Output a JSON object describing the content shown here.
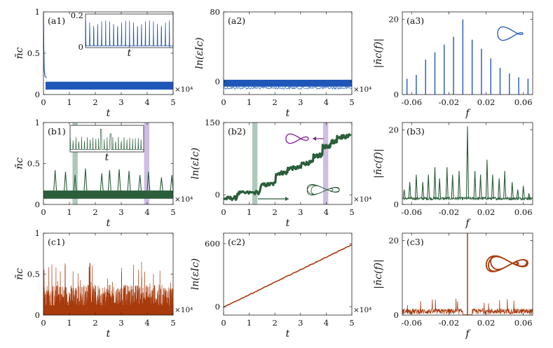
{
  "colors": {
    "blue": "#1f57b8",
    "green": "#2b5e3a",
    "orange": "#a83a0c",
    "band_green": "#9fbfad",
    "band_purple": "#c6b3de",
    "arrow_purple": "#7a2a8a",
    "inset_purple": "#8a2a9c"
  },
  "chart_data": [
    {
      "id": "a1",
      "type": "line",
      "label": "(a1)",
      "color_key": "blue",
      "xlabel": "t",
      "ylabel": "n̄c",
      "x_multiplier": "×10⁴",
      "xlim": [
        0,
        5
      ],
      "ylim": [
        0,
        1
      ],
      "xticks": [
        0,
        1,
        2,
        3,
        4,
        5
      ],
      "xtick_labels": [
        "0",
        "1",
        "2",
        "3",
        "4",
        "5"
      ],
      "yticks": [
        0,
        0.5,
        1
      ],
      "ytick_labels": [
        "0",
        "0.5",
        "1"
      ],
      "series": [
        {
          "name": "n_c(t)",
          "pattern": "transient_then_band",
          "initial": 0.98,
          "band_low": 0.06,
          "band_high": 0.155
        }
      ],
      "inset": {
        "ylim": [
          0,
          0.2
        ],
        "ytick_labels": [
          "0",
          "0.2"
        ],
        "xlabel": "t",
        "pattern": "periodic_spikes",
        "peak": 0.16,
        "count": 22
      }
    },
    {
      "id": "a2",
      "type": "line",
      "label": "(a2)",
      "color_key": "blue",
      "xlabel": "t",
      "ylabel": "ln(εIc)",
      "x_multiplier": "×10⁴",
      "xlim": [
        0,
        5
      ],
      "ylim": [
        -15,
        80
      ],
      "xticks": [
        0,
        1,
        2,
        3,
        4,
        5
      ],
      "xtick_labels": [
        "0",
        "1",
        "2",
        "3",
        "4",
        "5"
      ],
      "yticks": [
        0,
        80
      ],
      "ytick_labels": [
        "0",
        "80"
      ],
      "series": [
        {
          "name": "ln(eps)",
          "pattern": "flat_band",
          "center": -2,
          "half_width": 4
        }
      ]
    },
    {
      "id": "a3",
      "type": "bar",
      "label": "(a3)",
      "color_key": "blue",
      "xlabel": "f",
      "ylabel": "|n̄c(f)|",
      "xlim": [
        -0.07,
        0.07
      ],
      "ylim": [
        0,
        22
      ],
      "xticks": [
        -0.06,
        -0.02,
        0.02,
        0.06
      ],
      "xtick_labels": [
        "-0.06",
        "-0.02",
        "0.02",
        "0.06"
      ],
      "yticks": [
        0,
        20
      ],
      "ytick_labels": [
        "0",
        "20"
      ],
      "x": [
        -0.065,
        -0.055,
        -0.045,
        -0.035,
        -0.025,
        -0.015,
        -0.005,
        0.005,
        0.015,
        0.025,
        0.035,
        0.045,
        0.055,
        0.065
      ],
      "values": [
        4.2,
        5.2,
        9.3,
        11.2,
        13.3,
        15.4,
        20.0,
        14.6,
        12.2,
        9.6,
        7.1,
        5.6,
        4.6,
        4.2
      ]
    },
    {
      "id": "b1",
      "type": "line",
      "label": "(b1)",
      "color_key": "green",
      "xlabel": "t",
      "ylabel": "n̄c",
      "x_multiplier": "×10⁴",
      "xlim": [
        0,
        5
      ],
      "ylim": [
        0,
        1
      ],
      "xticks": [
        0,
        1,
        2,
        3,
        4,
        5
      ],
      "xtick_labels": [
        "0",
        "1",
        "2",
        "3",
        "4",
        "5"
      ],
      "yticks": [
        0,
        0.5,
        1
      ],
      "ytick_labels": [
        "0",
        "0.5",
        "1"
      ],
      "bands": [
        {
          "from": 1.12,
          "to": 1.32,
          "color_key": "band_green"
        },
        {
          "from": 3.88,
          "to": 4.08,
          "color_key": "band_purple"
        }
      ],
      "series": [
        {
          "name": "n_c(t)",
          "pattern": "baseline_with_spikes",
          "band_low": 0.07,
          "band_high": 0.17,
          "spike_t": [
            0.45,
            0.85,
            1.22,
            1.62,
            2.25,
            2.55,
            2.92,
            3.3,
            3.72,
            4.05,
            4.55,
            4.95
          ],
          "spike_h": [
            0.42,
            0.4,
            0.36,
            0.44,
            0.38,
            0.42,
            0.43,
            0.41,
            0.36,
            0.4,
            0.33,
            0.36
          ]
        }
      ],
      "inset": {
        "xlabel": "t",
        "pattern": "periodic_spikes_irregular"
      }
    },
    {
      "id": "b2",
      "type": "line",
      "label": "(b2)",
      "color_key": "green",
      "xlabel": "t",
      "ylabel": "ln(εIc)",
      "x_multiplier": "×10⁴",
      "xlim": [
        0,
        5
      ],
      "ylim": [
        -20,
        150
      ],
      "xticks": [
        0,
        1,
        2,
        3,
        4,
        5
      ],
      "xtick_labels": [
        "0",
        "1",
        "2",
        "3",
        "4",
        "5"
      ],
      "yticks": [
        0,
        150
      ],
      "ytick_labels": [
        "0",
        "150"
      ],
      "bands": [
        {
          "from": 1.12,
          "to": 1.32,
          "color_key": "band_green"
        },
        {
          "from": 3.88,
          "to": 4.08,
          "color_key": "band_purple"
        }
      ],
      "series": [
        {
          "name": "ln(eps)",
          "pattern": "staircase",
          "steps": [
            [
              0,
              -8
            ],
            [
              0.6,
              3
            ],
            [
              1.55,
              20
            ],
            [
              2.1,
              45
            ],
            [
              2.55,
              55
            ],
            [
              3.1,
              65
            ],
            [
              3.55,
              80
            ],
            [
              3.9,
              100
            ],
            [
              4.2,
              110
            ],
            [
              4.45,
              120
            ],
            [
              4.95,
              127
            ]
          ]
        }
      ]
    },
    {
      "id": "b3",
      "type": "line",
      "label": "(b3)",
      "color_key": "green",
      "xlabel": "f",
      "ylabel": "|n̄c(f)|",
      "xlim": [
        -0.07,
        0.07
      ],
      "ylim": [
        0,
        22
      ],
      "xticks": [
        -0.06,
        -0.02,
        0.02,
        0.06
      ],
      "xtick_labels": [
        "-0.06",
        "-0.02",
        "0.02",
        "0.06"
      ],
      "yticks": [
        0,
        20
      ],
      "ytick_labels": [
        "0",
        "20"
      ],
      "peaks_x": [
        -0.068,
        -0.062,
        -0.055,
        -0.048,
        -0.042,
        -0.035,
        -0.03,
        -0.022,
        -0.016,
        -0.009,
        0.0,
        0.008,
        0.014,
        0.021,
        0.027,
        0.034,
        0.04,
        0.048,
        0.054,
        0.06,
        0.066
      ],
      "peaks_y": [
        4,
        6,
        8,
        6,
        8,
        10,
        7,
        10,
        8,
        9,
        21,
        9,
        8,
        12,
        8,
        7,
        9,
        6,
        4,
        5,
        3
      ]
    },
    {
      "id": "c1",
      "type": "line",
      "label": "(c1)",
      "color_key": "orange",
      "xlabel": "t",
      "ylabel": "n̄c",
      "x_multiplier": "×10⁴",
      "xlim": [
        0,
        5
      ],
      "ylim": [
        0,
        1
      ],
      "xticks": [
        0,
        1,
        2,
        3,
        4,
        5
      ],
      "xtick_labels": [
        "0",
        "1",
        "2",
        "3",
        "4",
        "5"
      ],
      "yticks": [
        0,
        0.5,
        1
      ],
      "ytick_labels": [
        "0",
        "0.5",
        "1"
      ],
      "series": [
        {
          "name": "n_c(t)",
          "pattern": "chaotic_noise",
          "mean": 0.22,
          "max": 0.65
        }
      ]
    },
    {
      "id": "c2",
      "type": "line",
      "label": "(c2)",
      "color_key": "orange",
      "xlabel": "t",
      "ylabel": "ln(εIc)",
      "x_multiplier": "×10⁴",
      "xlim": [
        0,
        5
      ],
      "ylim": [
        -80,
        700
      ],
      "xticks": [
        0,
        1,
        2,
        3,
        4,
        5
      ],
      "xtick_labels": [
        "0",
        "1",
        "2",
        "3",
        "4",
        "5"
      ],
      "yticks": [
        0,
        600
      ],
      "ytick_labels": [
        "0",
        "600"
      ],
      "series": [
        {
          "name": "ln(eps)",
          "pattern": "linear",
          "start": -5,
          "end": 590
        }
      ]
    },
    {
      "id": "c3",
      "type": "line",
      "label": "(c3)",
      "color_key": "orange",
      "xlabel": "f",
      "ylabel": "|n̄c(f)|",
      "xlim": [
        -0.07,
        0.07
      ],
      "ylim": [
        0,
        22
      ],
      "xticks": [
        -0.06,
        -0.02,
        0.02,
        0.06
      ],
      "xtick_labels": [
        "-0.06",
        "-0.02",
        "0.02",
        "0.06"
      ],
      "yticks": [
        0,
        20
      ],
      "ytick_labels": [
        "0",
        "20"
      ],
      "dc_peak": 22,
      "broadband_max": 4.5
    }
  ]
}
